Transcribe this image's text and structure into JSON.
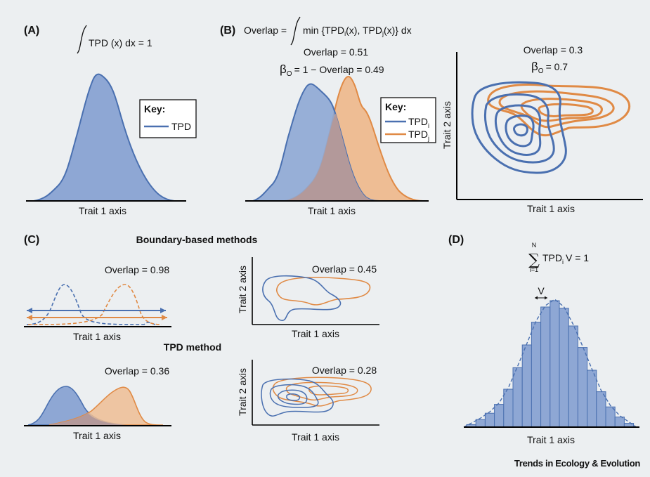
{
  "colors": {
    "background": "#eceff1",
    "blue": "#4a70b0",
    "blue_fill": "#8ea7d4",
    "orange": "#e08a45",
    "orange_fill": "#eebd94",
    "overlap_fill": "#b3999a"
  },
  "panel_a": {
    "letter": "(A)",
    "formula": "TPD (x) dx = 1",
    "key_title": "Key:",
    "key_item": "TPD",
    "xlabel": "Trait 1 axis"
  },
  "panel_b": {
    "letter": "(B)",
    "formula_prefix": "Overlap =",
    "formula_min": "min {TPD",
    "formula_i_sub": "i",
    "formula_mid": "(x), TPD",
    "formula_j_sub": "j",
    "formula_end": "(x)} dx",
    "overlap_1d": "Overlap = 0.51",
    "beta_prefix": "β",
    "beta_sub": "O",
    "beta_1d_rest": "= 1 − Overlap = 0.49",
    "key_title": "Key:",
    "key_i": "TPD",
    "key_i_sub": "i",
    "key_j": "TPD",
    "key_j_sub": "j",
    "xlabel": "Trait 1 axis",
    "overlap_2d": "Overlap = 0.3",
    "beta_2d_rest": "= 0.7",
    "xlabel_2d": "Trait 1 axis",
    "ylabel_2d": "Trait 2 axis"
  },
  "panel_c": {
    "letter": "(C)",
    "boundary_title": "Boundary-based methods",
    "tpd_title": "TPD method",
    "overlap_b1": "Overlap = 0.98",
    "overlap_b2": "Overlap = 0.45",
    "overlap_t1": "Overlap = 0.36",
    "overlap_t2": "Overlap = 0.28",
    "xlabel": "Trait 1 axis",
    "ylabel": "Trait 2 axis"
  },
  "panel_d": {
    "letter": "(D)",
    "sum_upper": "N",
    "sum_lower": "i=1",
    "sum_term": "TPD",
    "sum_sub": "i",
    "sum_rest": "V = 1",
    "v_label": "V",
    "xlabel": "Trait 1 axis",
    "bar_heights": [
      0.02,
      0.06,
      0.11,
      0.18,
      0.3,
      0.47,
      0.65,
      0.83,
      0.95,
      1.0,
      0.94,
      0.8,
      0.63,
      0.45,
      0.28,
      0.16,
      0.08,
      0.03
    ]
  },
  "journal": "Trends in Ecology & Evolution"
}
